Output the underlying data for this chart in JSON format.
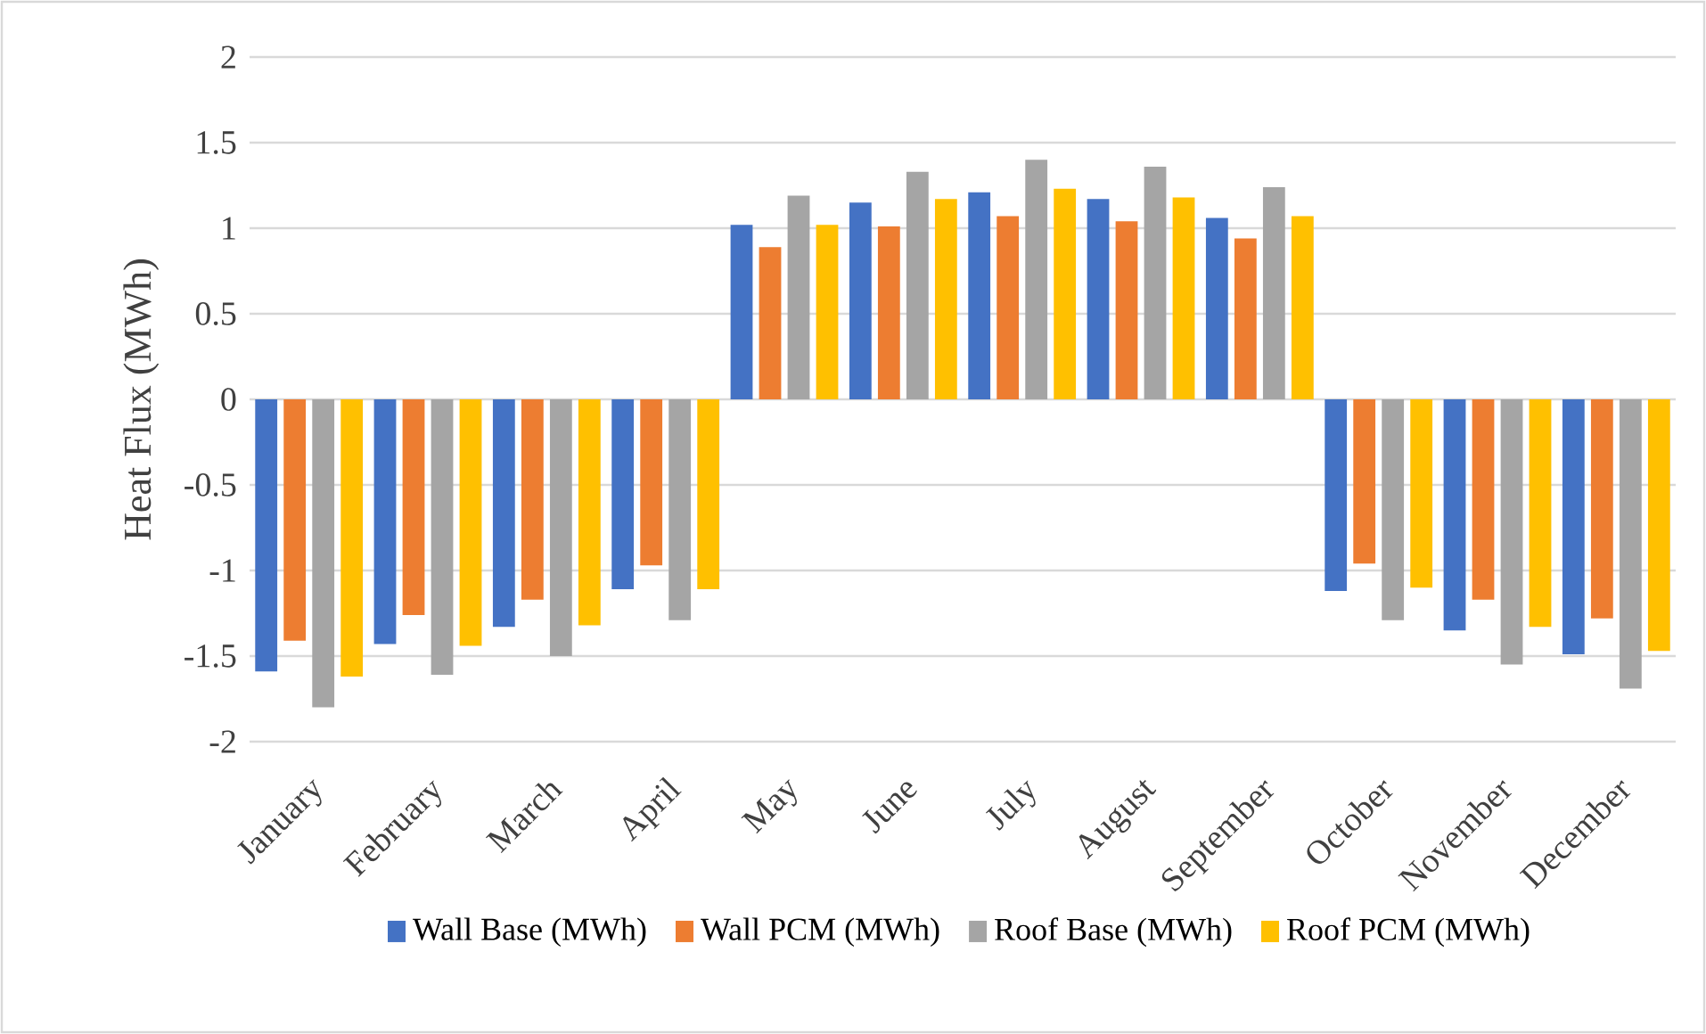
{
  "chart_data": {
    "type": "bar",
    "ylabel": "Heat Flux (MWh)",
    "categories": [
      "January",
      "February",
      "March",
      "April",
      "May",
      "June",
      "July",
      "August",
      "September",
      "October",
      "November",
      "December"
    ],
    "series": [
      {
        "name": "Wall Base (MWh)",
        "color": "#4472c4",
        "values": [
          -1.59,
          -1.43,
          -1.33,
          -1.11,
          1.02,
          1.15,
          1.21,
          1.17,
          1.06,
          -1.12,
          -1.35,
          -1.49
        ]
      },
      {
        "name": "Wall PCM (MWh)",
        "color": "#ed7d31",
        "values": [
          -1.41,
          -1.26,
          -1.17,
          -0.97,
          0.89,
          1.01,
          1.07,
          1.04,
          0.94,
          -0.96,
          -1.17,
          -1.28
        ]
      },
      {
        "name": "Roof Base (MWh)",
        "color": "#a5a5a5",
        "values": [
          -1.8,
          -1.61,
          -1.5,
          -1.29,
          1.19,
          1.33,
          1.4,
          1.36,
          1.24,
          -1.29,
          -1.55,
          -1.69
        ]
      },
      {
        "name": "Roof PCM (MWh)",
        "color": "#ffc000",
        "values": [
          -1.62,
          -1.44,
          -1.32,
          -1.11,
          1.02,
          1.17,
          1.23,
          1.18,
          1.07,
          -1.1,
          -1.33,
          -1.47
        ]
      }
    ],
    "ylim": [
      -2,
      2
    ],
    "yticks": [
      -2,
      -1.5,
      -1,
      -0.5,
      0,
      0.5,
      1,
      1.5,
      2
    ],
    "grid": "y",
    "legend": "bottom"
  }
}
